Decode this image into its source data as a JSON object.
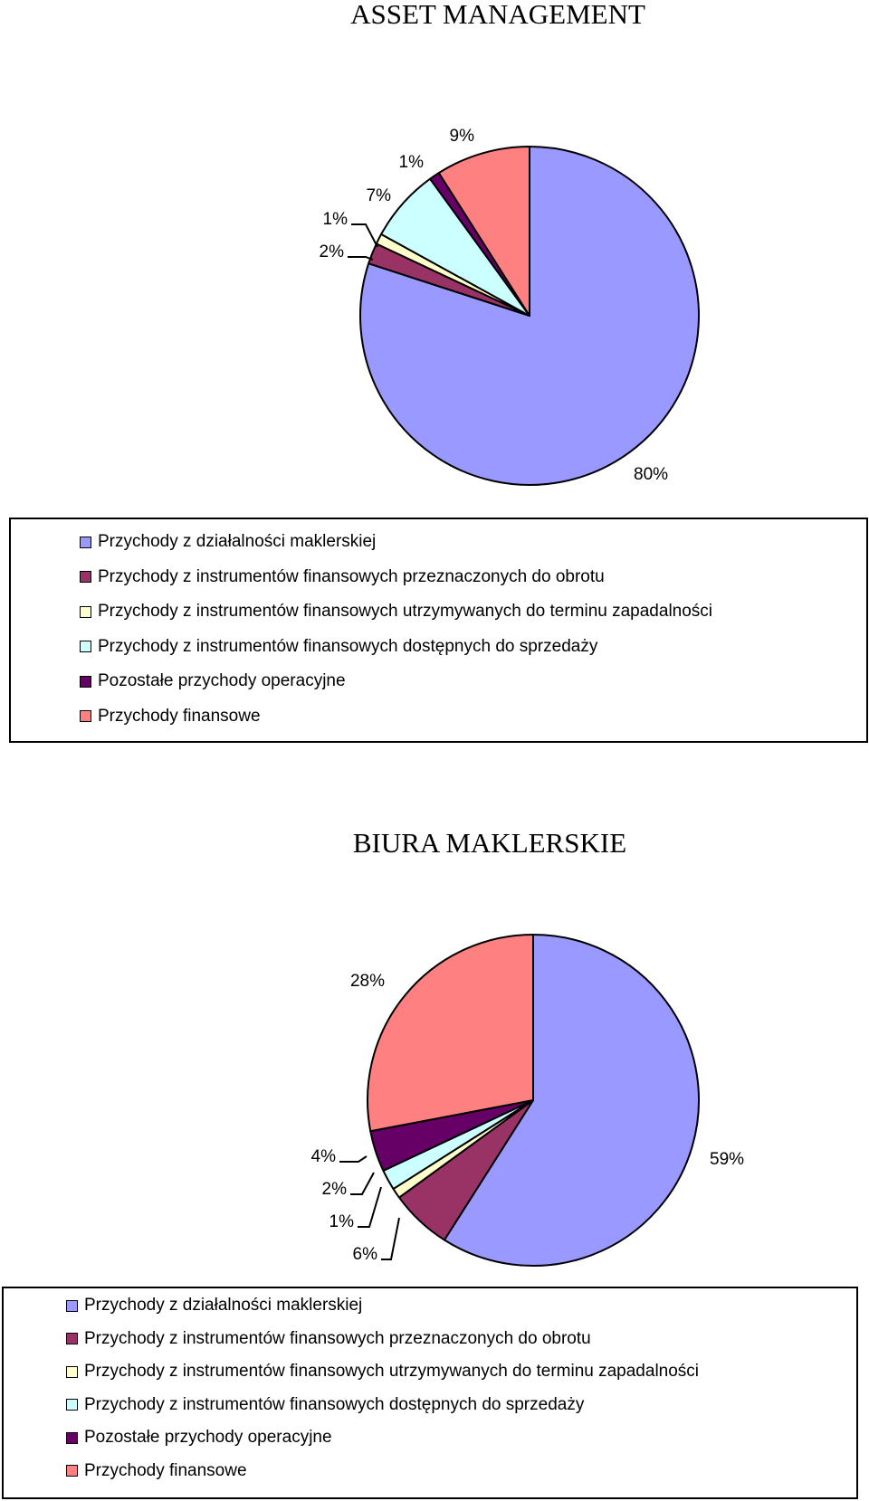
{
  "chart_data": [
    {
      "type": "pie",
      "title": "ASSET MANAGEMENT",
      "categories": [
        "Przychody z działalności maklerskiej",
        "Przychody z instrumentów finansowych przeznaczonych do obrotu",
        "Przychody z instrumentów finansowych utrzymywanych do terminu zapadalności",
        "Przychody z instrumentów finansowych dostępnych do sprzedaży",
        "Pozostałe przychody operacyjne",
        "Przychody finansowe"
      ],
      "values": [
        80,
        2,
        1,
        7,
        1,
        9
      ],
      "labels": [
        "80%",
        "2%",
        "1%",
        "7%",
        "1%",
        "9%"
      ],
      "legend_position": "bottom"
    },
    {
      "type": "pie",
      "title": "BIURA MAKLERSKIE",
      "categories": [
        "Przychody z działalności maklerskiej",
        "Przychody z instrumentów finansowych przeznaczonych do obrotu",
        "Przychody z instrumentów finansowych utrzymywanych do terminu zapadalności",
        "Przychody z instrumentów finansowych dostępnych do sprzedaży",
        "Pozostałe przychody operacyjne",
        "Przychody finansowe"
      ],
      "values": [
        59,
        6,
        1,
        2,
        4,
        28
      ],
      "labels": [
        "59%",
        "6%",
        "1%",
        "2%",
        "4%",
        "28%"
      ],
      "legend_position": "bottom"
    }
  ],
  "colors": [
    "#9999FF",
    "#993366",
    "#FFFFCC",
    "#CCFFFF",
    "#660066",
    "#FF8080"
  ]
}
